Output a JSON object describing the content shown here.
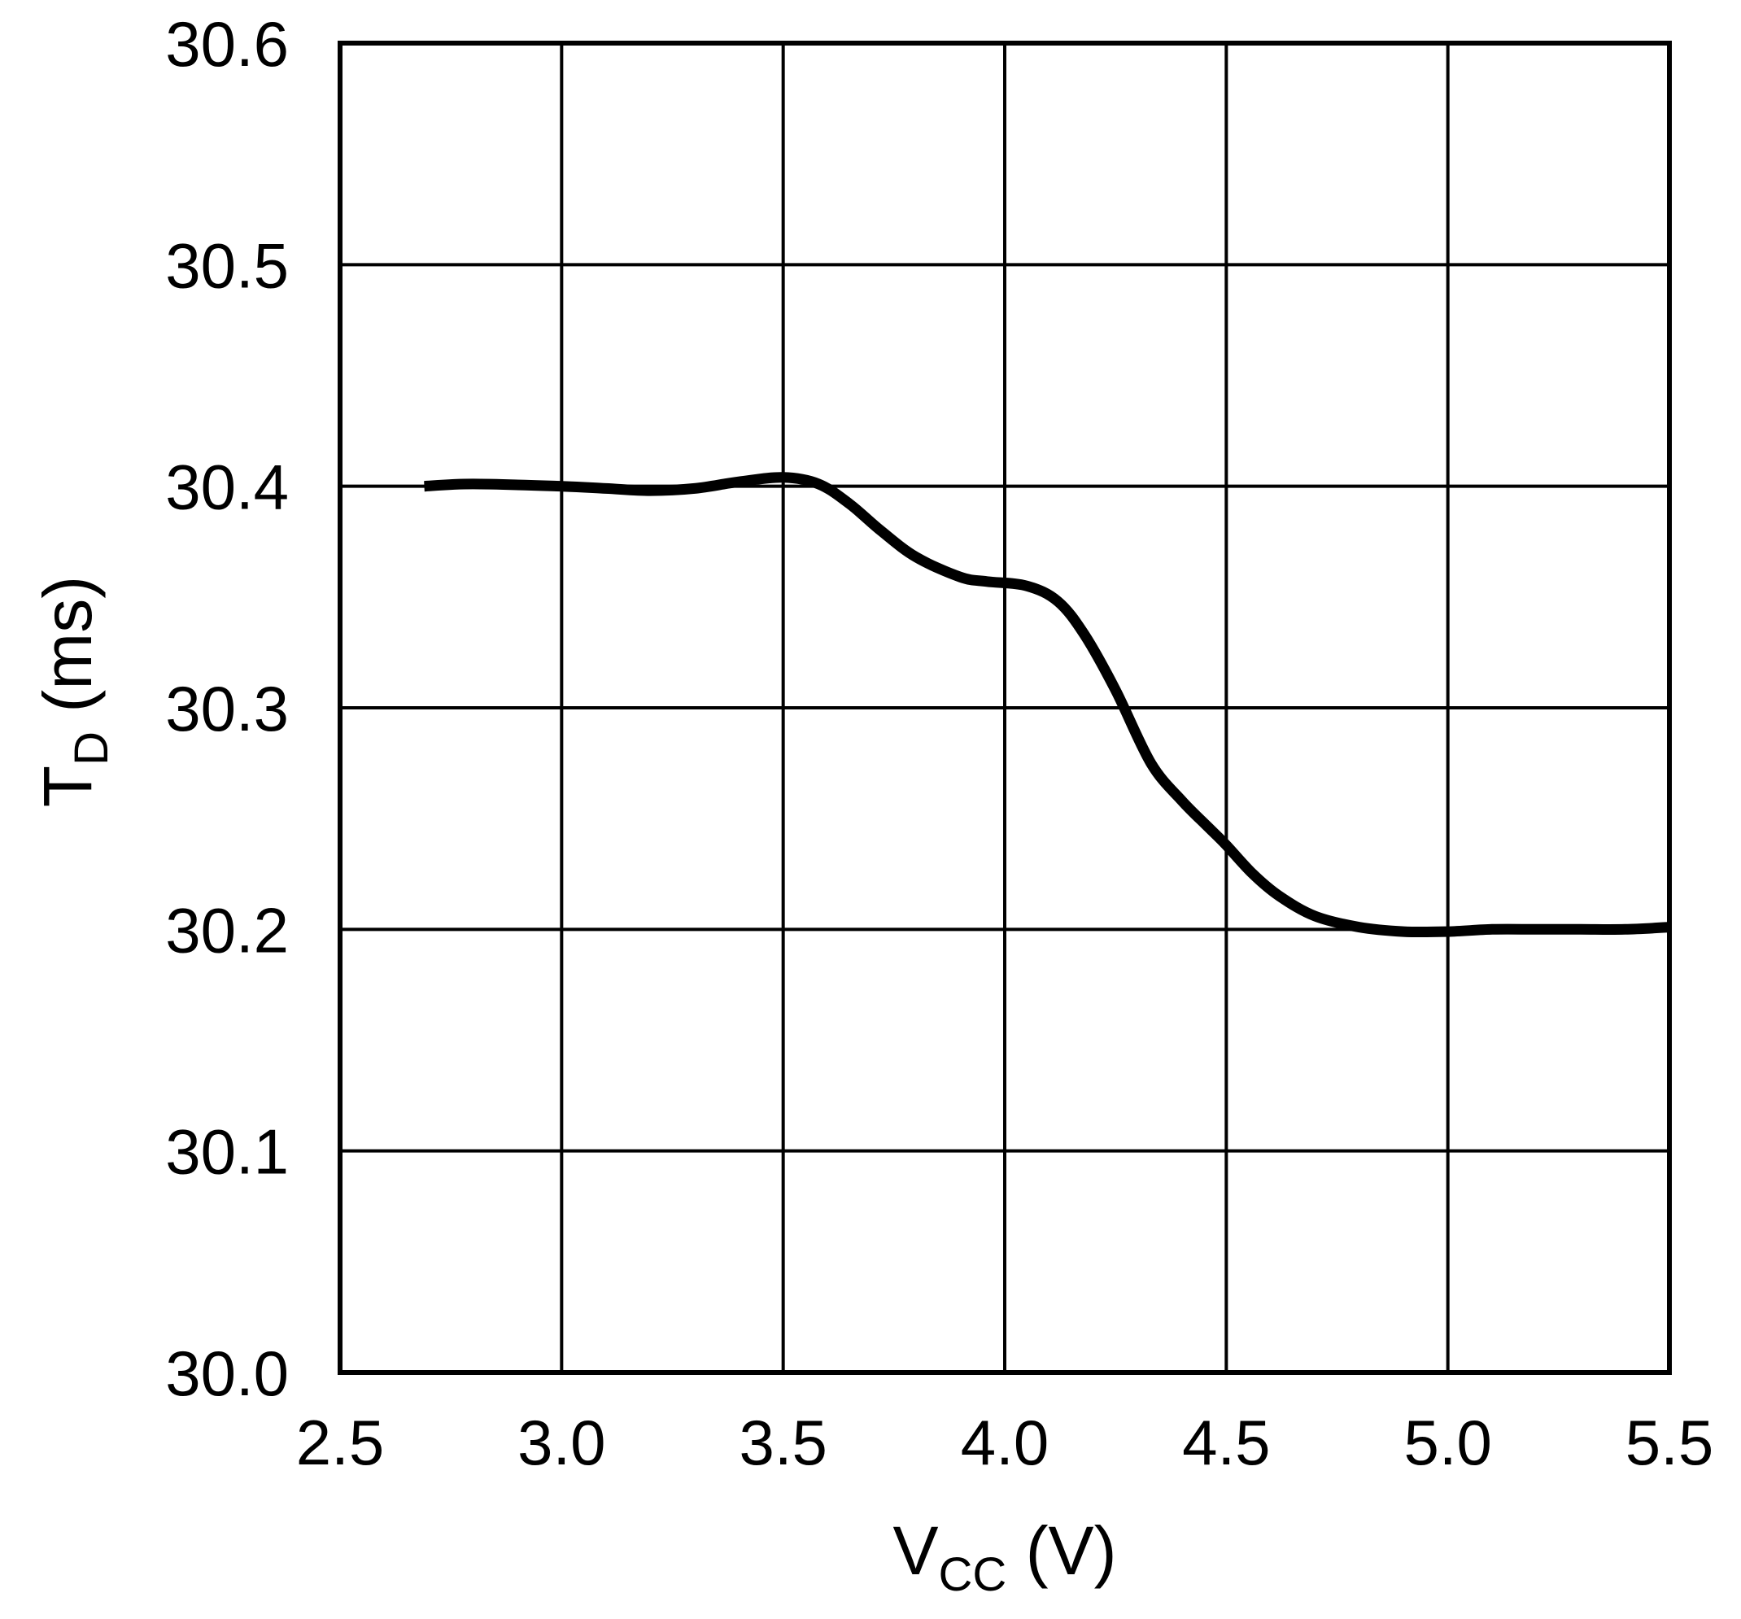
{
  "chart_data": {
    "type": "line",
    "title": "",
    "xlabel": {
      "main": "V",
      "sub": "CC",
      "unit": " (V)"
    },
    "ylabel": {
      "main": "T",
      "sub": "D",
      "unit": " (ms)"
    },
    "xlim": [
      2.5,
      5.5
    ],
    "ylim": [
      30.0,
      30.6
    ],
    "xticks": [
      2.5,
      3.0,
      3.5,
      4.0,
      4.5,
      5.0,
      5.5
    ],
    "xtick_labels": [
      "2.5",
      "3.0",
      "3.5",
      "4.0",
      "4.5",
      "5.0",
      "5.5"
    ],
    "yticks": [
      30.0,
      30.1,
      30.2,
      30.3,
      30.4,
      30.5,
      30.6
    ],
    "ytick_labels": [
      "30.0",
      "30.1",
      "30.2",
      "30.3",
      "30.4",
      "30.5",
      "30.6"
    ],
    "grid": true,
    "line_color": "#000000",
    "series": [
      {
        "x": [
          2.69,
          2.8,
          3.0,
          3.1,
          3.2,
          3.3,
          3.4,
          3.5,
          3.58,
          3.65,
          3.72,
          3.8,
          3.9,
          3.96,
          4.05,
          4.12,
          4.18,
          4.25,
          4.33,
          4.4,
          4.46,
          4.5,
          4.56,
          4.62,
          4.7,
          4.8,
          4.9,
          5.0,
          5.1,
          5.2,
          5.3,
          5.4,
          5.5
        ],
        "y": [
          30.4,
          30.401,
          30.4,
          30.399,
          30.398,
          30.399,
          30.402,
          30.404,
          30.401,
          30.392,
          30.38,
          30.368,
          30.359,
          30.357,
          30.355,
          30.348,
          30.333,
          30.308,
          30.275,
          30.258,
          30.246,
          30.238,
          30.225,
          30.215,
          30.206,
          30.201,
          30.199,
          30.199,
          30.2,
          30.2,
          30.2,
          30.2,
          30.201
        ]
      }
    ]
  }
}
